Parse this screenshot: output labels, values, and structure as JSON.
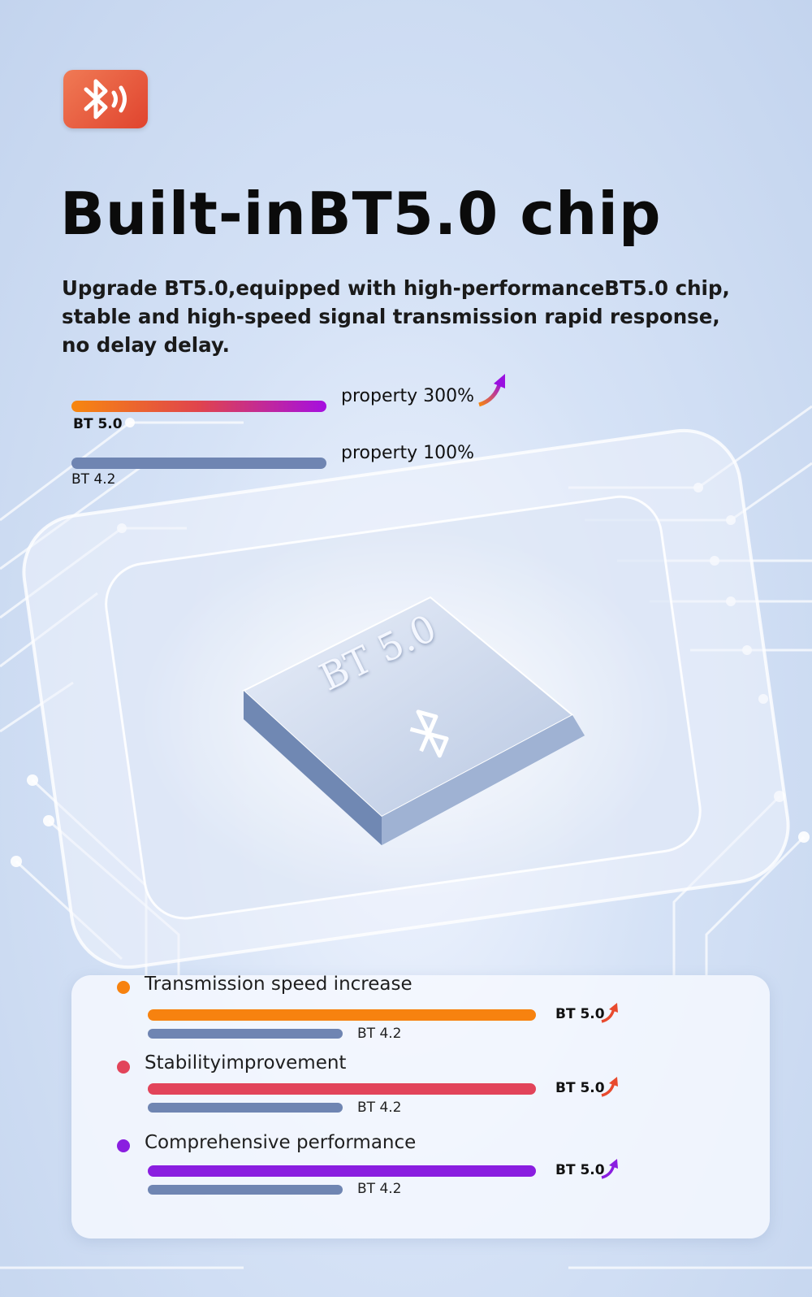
{
  "header": {
    "title": "Built-inBT5.0 chip",
    "description_lines": [
      "Upgrade BT5.0,equipped with high-performanceBT5.0 chip,",
      "stable and high-speed signal transmission rapid response,",
      "no delay delay."
    ]
  },
  "comparison": {
    "bt50": {
      "label": "BT 5.0",
      "property": "property 300%",
      "value_percent": 300
    },
    "bt42": {
      "label": "BT 4.2",
      "property": "property 100%",
      "value_percent": 100
    }
  },
  "chip": {
    "marking": "BT 5.0"
  },
  "features": [
    {
      "label": "Transmission speed increase",
      "color": "#f7820f",
      "bt50": "BT 5.0",
      "bt42": "BT 4.2"
    },
    {
      "label": "Stabilityimprovement",
      "color": "#e2445a",
      "bt50": "BT 5.0",
      "bt42": "BT 4.2"
    },
    {
      "label": "Comprehensive performance",
      "color": "#8a1ee0",
      "bt50": "BT 5.0",
      "bt42": "BT 4.2"
    }
  ],
  "icons": {
    "logo": "bluetooth-signal-icon",
    "arrow": "up-trend-arrow-icon"
  },
  "colors": {
    "accent_logo": "#e9573a",
    "bt42_bar": "#6f85b2",
    "gradient": [
      "#f7870f",
      "#e0444d",
      "#a50fe0"
    ]
  }
}
